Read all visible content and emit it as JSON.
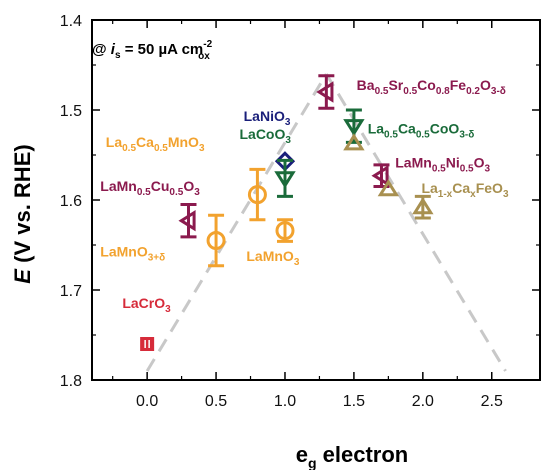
{
  "chart_data": {
    "type": "scatter",
    "title": "",
    "annotation": {
      "prefix": "@ ",
      "i": "i",
      "i_sub": "s",
      "eq": " = 50 µA cm",
      "sup": "-2",
      "sub": "ox"
    },
    "xlabel": {
      "main": "e",
      "sub": "g",
      "rest": " electron"
    },
    "ylabel": {
      "E": "E",
      "rest": " (V vs. RHE)"
    },
    "xlim": [
      -0.4,
      2.85
    ],
    "ylim": [
      1.8,
      1.4
    ],
    "y_inverted": true,
    "xticks": [
      "0.0",
      "0.5",
      "1.0",
      "1.5",
      "2.0",
      "2.5"
    ],
    "xtick_values": [
      0.0,
      0.5,
      1.0,
      1.5,
      2.0,
      2.5
    ],
    "yticks": [
      "1.4",
      "1.5",
      "1.6",
      "1.7",
      "1.8"
    ],
    "ytick_values": [
      1.4,
      1.5,
      1.6,
      1.7,
      1.8
    ],
    "colors": {
      "red": "#d62b3a",
      "orange": "#f2a22e",
      "navy": "#1a1f7a",
      "green": "#1a6b3a",
      "maroon": "#8b1a4e",
      "olive": "#a89050",
      "dash": "#c8c8c8"
    },
    "trend_lines": [
      {
        "x": [
          0.0,
          1.3
        ],
        "y": [
          1.79,
          1.46
        ]
      },
      {
        "x": [
          1.3,
          2.6
        ],
        "y": [
          1.46,
          1.79
        ]
      }
    ],
    "points": [
      {
        "id": "lacro3",
        "x": 0.0,
        "y": 1.76,
        "err": 0.0,
        "marker": "square-bars",
        "color": "red",
        "label": [
          {
            "t": "LaCrO"
          },
          {
            "t": "3",
            "s": "sub"
          }
        ],
        "lx": -0.18,
        "ly": 1.72
      },
      {
        "id": "lamno3d",
        "x": 0.5,
        "y": 1.645,
        "err": 0.028,
        "marker": "circle",
        "color": "orange",
        "label": [
          {
            "t": "LaMnO"
          },
          {
            "t": "3+δ",
            "s": "sub"
          }
        ],
        "lx": -0.34,
        "ly": 1.663
      },
      {
        "id": "lamn5cu5",
        "x": 0.3,
        "y": 1.623,
        "err": 0.018,
        "marker": "tri-left",
        "color": "maroon",
        "label": [
          {
            "t": "LaMn"
          },
          {
            "t": "0.5",
            "s": "sub"
          },
          {
            "t": "Cu"
          },
          {
            "t": "0.5",
            "s": "sub"
          },
          {
            "t": "O"
          },
          {
            "t": "3",
            "s": "sub"
          }
        ],
        "lx": -0.34,
        "ly": 1.59
      },
      {
        "id": "laca5mno3",
        "x": 0.8,
        "y": 1.594,
        "err": 0.028,
        "marker": "circle",
        "color": "orange",
        "label": [
          {
            "t": "La"
          },
          {
            "t": "0.5",
            "s": "sub"
          },
          {
            "t": "Ca"
          },
          {
            "t": "0.5",
            "s": "sub"
          },
          {
            "t": "MnO"
          },
          {
            "t": "3",
            "s": "sub"
          }
        ],
        "lx": -0.3,
        "ly": 1.541
      },
      {
        "id": "lamno3",
        "x": 1.0,
        "y": 1.634,
        "err": 0.012,
        "marker": "circle",
        "color": "orange",
        "label": [
          {
            "t": "LaMnO"
          },
          {
            "t": "3",
            "s": "sub"
          }
        ],
        "lx": 0.72,
        "ly": 1.668
      },
      {
        "id": "lanio3",
        "x": 1.0,
        "y": 1.557,
        "err": 0.0,
        "marker": "diamond",
        "color": "navy",
        "label": [
          {
            "t": "LaNiO"
          },
          {
            "t": "3",
            "s": "sub"
          }
        ],
        "lx": 0.7,
        "ly": 1.512
      },
      {
        "id": "lacoo3",
        "x": 1.0,
        "y": 1.576,
        "err": 0.02,
        "marker": "tri-down",
        "color": "green",
        "label": [
          {
            "t": "LaCoO"
          },
          {
            "t": "3",
            "s": "sub"
          }
        ],
        "lx": 0.67,
        "ly": 1.532
      },
      {
        "id": "bscf",
        "x": 1.3,
        "y": 1.48,
        "err": 0.018,
        "marker": "tri-left",
        "color": "maroon",
        "label": [
          {
            "t": "Ba"
          },
          {
            "t": "0.5",
            "s": "sub"
          },
          {
            "t": "Sr"
          },
          {
            "t": "0.5",
            "s": "sub"
          },
          {
            "t": "Co"
          },
          {
            "t": "0.8",
            "s": "sub"
          },
          {
            "t": "Fe"
          },
          {
            "t": "0.2",
            "s": "sub"
          },
          {
            "t": "O"
          },
          {
            "t": "3-δ",
            "s": "sub"
          }
        ],
        "lx": 1.52,
        "ly": 1.478
      },
      {
        "id": "laca5coo3",
        "x": 1.5,
        "y": 1.518,
        "err": 0.018,
        "marker": "tri-down",
        "color": "green",
        "label": [
          {
            "t": "La"
          },
          {
            "t": "0.5",
            "s": "sub"
          },
          {
            "t": "Ca"
          },
          {
            "t": "0.5",
            "s": "sub"
          },
          {
            "t": "CoO"
          },
          {
            "t": "3-δ",
            "s": "sub"
          }
        ],
        "lx": 1.6,
        "ly": 1.526
      },
      {
        "id": "lacafeo3_a",
        "x": 1.5,
        "y": 1.537,
        "err": 0.0,
        "marker": "tri-up",
        "color": "olive",
        "label": [],
        "lx": 0,
        "ly": 0
      },
      {
        "id": "lamn5ni5",
        "x": 1.7,
        "y": 1.573,
        "err": 0.012,
        "marker": "tri-left",
        "color": "maroon",
        "label": [
          {
            "t": "LaMn"
          },
          {
            "t": "0.5",
            "s": "sub"
          },
          {
            "t": "Ni"
          },
          {
            "t": "0.5",
            "s": "sub"
          },
          {
            "t": "O"
          },
          {
            "t": "3",
            "s": "sub"
          }
        ],
        "lx": 1.8,
        "ly": 1.564
      },
      {
        "id": "lacafeo3_b",
        "x": 1.75,
        "y": 1.588,
        "err": 0.0,
        "marker": "tri-up",
        "color": "olive",
        "label": [
          {
            "t": "La"
          },
          {
            "t": "1-x",
            "s": "sub"
          },
          {
            "t": "Ca"
          },
          {
            "t": "x",
            "s": "sub"
          },
          {
            "t": "FeO"
          },
          {
            "t": "3",
            "s": "sub"
          }
        ],
        "lx": 1.99,
        "ly": 1.592
      },
      {
        "id": "lacafeo3_c",
        "x": 2.0,
        "y": 1.608,
        "err": 0.012,
        "marker": "tri-up",
        "color": "olive",
        "label": [],
        "lx": 0,
        "ly": 0
      }
    ]
  }
}
